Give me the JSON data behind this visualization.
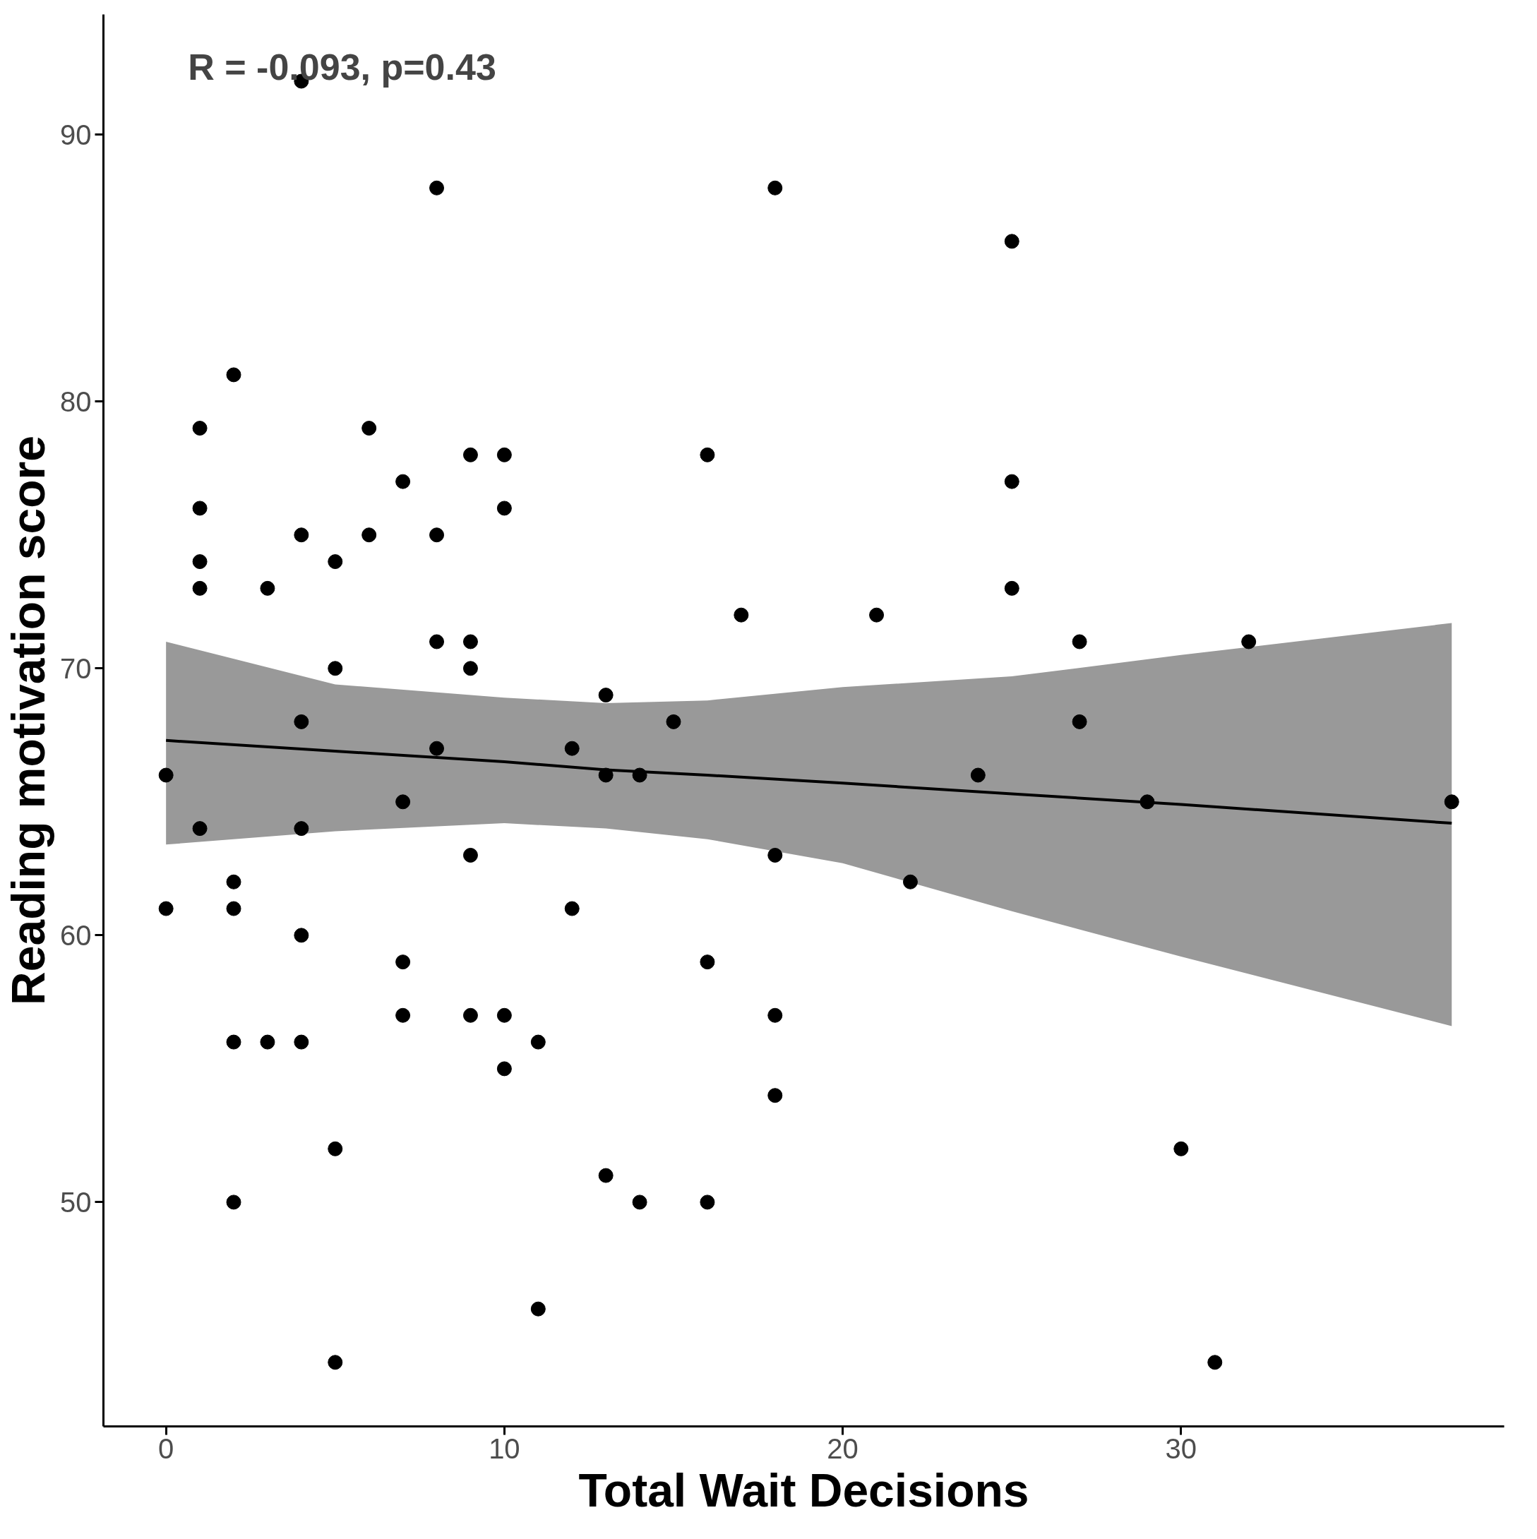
{
  "chart_data": {
    "type": "scatter",
    "xlabel": "Total Wait Decisions",
    "ylabel": "Reading motivation score",
    "annotations": [
      "R = -0.093, p=0.43"
    ],
    "xlim": [
      -1.85,
      39.55
    ],
    "ylim": [
      41.6,
      94.5
    ],
    "xticks": [
      0,
      10,
      20,
      30
    ],
    "yticks": [
      50,
      60,
      70,
      80,
      90
    ],
    "grid": false,
    "marker": "circle",
    "series": [
      {
        "color": "#000000",
        "x": [
          0,
          0,
          1,
          1,
          1,
          1,
          1,
          2,
          2,
          2,
          2,
          2,
          3,
          3,
          4,
          4,
          4,
          4,
          4,
          4,
          5,
          5,
          5,
          5,
          6,
          6,
          7,
          7,
          7,
          7,
          8,
          8,
          8,
          8,
          9,
          9,
          9,
          9,
          9,
          10,
          10,
          10,
          10,
          11,
          11,
          12,
          12,
          13,
          13,
          13,
          14,
          14,
          15,
          16,
          16,
          16,
          17,
          18,
          18,
          18,
          18,
          21,
          22,
          24,
          25,
          25,
          25,
          27,
          27,
          29,
          30,
          31,
          32,
          38
        ],
        "values": [
          66,
          61,
          79,
          76,
          74,
          73,
          64,
          81,
          62,
          61,
          56,
          50,
          73,
          56,
          92,
          75,
          68,
          64,
          60,
          56,
          74,
          70,
          52,
          44,
          79,
          75,
          77,
          65,
          59,
          57,
          88,
          75,
          71,
          67,
          78,
          71,
          70,
          63,
          57,
          78,
          76,
          57,
          55,
          56,
          46,
          67,
          61,
          69,
          66,
          51,
          66,
          50,
          68,
          78,
          59,
          50,
          72,
          88,
          63,
          57,
          54,
          72,
          62,
          66,
          86,
          77,
          73,
          71,
          68,
          65,
          52,
          44,
          71,
          65
        ]
      },
      {
        "type": "line",
        "marker": "none",
        "color": "#000000",
        "x": [
          0,
          5,
          10,
          13,
          16,
          20,
          25,
          30,
          38
        ],
        "values": [
          67.3,
          66.9,
          66.5,
          66.2,
          66.0,
          65.7,
          65.3,
          64.9,
          64.2
        ],
        "lower": [
          63.4,
          63.9,
          64.2,
          64.0,
          63.6,
          62.7,
          60.9,
          59.2,
          56.6
        ],
        "upper": [
          71.0,
          69.4,
          68.9,
          68.7,
          68.8,
          69.3,
          69.7,
          70.5,
          71.7
        ]
      }
    ]
  }
}
